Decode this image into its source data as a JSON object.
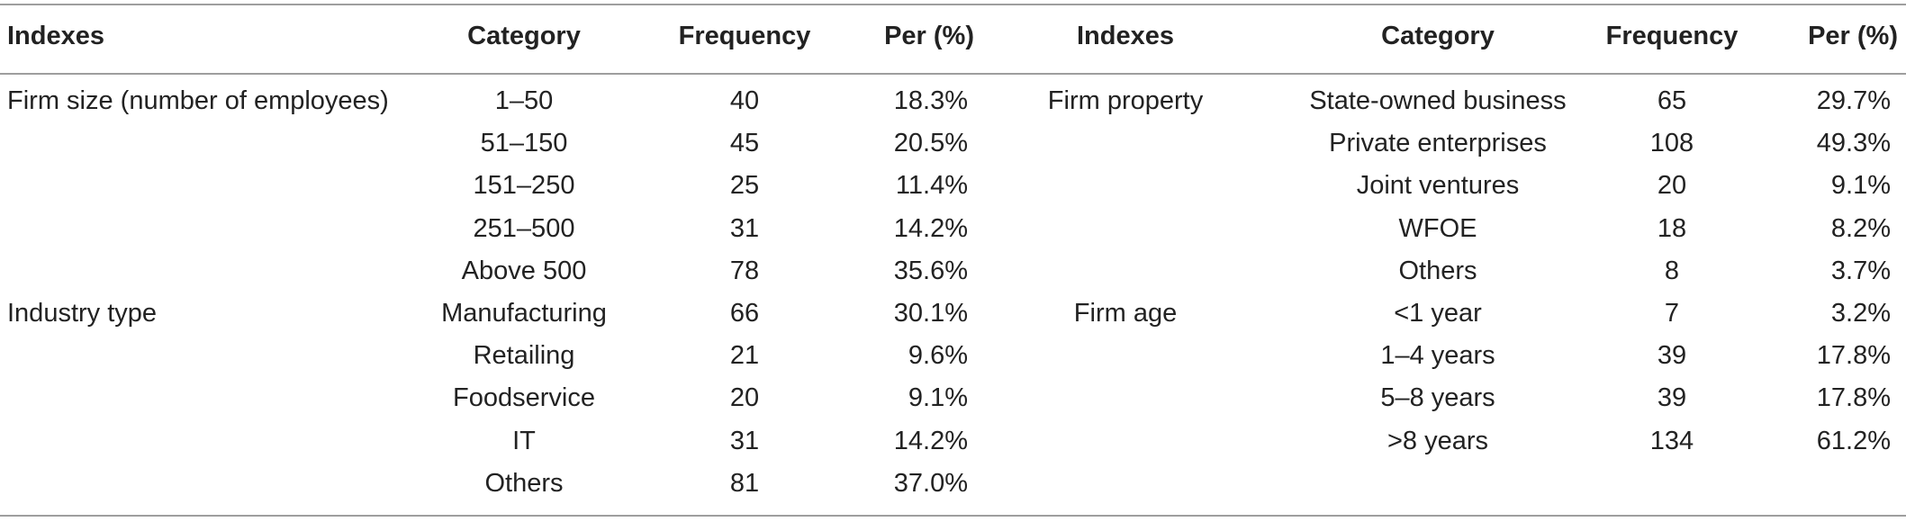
{
  "header": {
    "left": [
      "Indexes",
      "Category",
      "Frequency",
      "Per (%)"
    ],
    "right": [
      "Indexes",
      "Category",
      "Frequency",
      "Per (%)"
    ]
  },
  "rows": [
    {
      "l_index": "Firm size (number of employees)",
      "l_category": "1–50",
      "l_freq": "40",
      "l_per": "18.3%",
      "r_index": "Firm property",
      "r_category": "State-owned business",
      "r_freq": "65",
      "r_per": "29.7%"
    },
    {
      "l_index": "",
      "l_category": "51–150",
      "l_freq": "45",
      "l_per": "20.5%",
      "r_index": "",
      "r_category": "Private enterprises",
      "r_freq": "108",
      "r_per": "49.3%"
    },
    {
      "l_index": "",
      "l_category": "151–250",
      "l_freq": "25",
      "l_per": "11.4%",
      "r_index": "",
      "r_category": "Joint ventures",
      "r_freq": "20",
      "r_per": "9.1%"
    },
    {
      "l_index": "",
      "l_category": "251–500",
      "l_freq": "31",
      "l_per": "14.2%",
      "r_index": "",
      "r_category": "WFOE",
      "r_freq": "18",
      "r_per": "8.2%"
    },
    {
      "l_index": "",
      "l_category": "Above 500",
      "l_freq": "78",
      "l_per": "35.6%",
      "r_index": "",
      "r_category": "Others",
      "r_freq": "8",
      "r_per": "3.7%"
    },
    {
      "l_index": "Industry type",
      "l_category": "Manufacturing",
      "l_freq": "66",
      "l_per": "30.1%",
      "r_index": "Firm age",
      "r_category": "<1 year",
      "r_freq": "7",
      "r_per": "3.2%"
    },
    {
      "l_index": "",
      "l_category": "Retailing",
      "l_freq": "21",
      "l_per": "9.6%",
      "r_index": "",
      "r_category": "1–4 years",
      "r_freq": "39",
      "r_per": "17.8%"
    },
    {
      "l_index": "",
      "l_category": "Foodservice",
      "l_freq": "20",
      "l_per": "9.1%",
      "r_index": "",
      "r_category": "5–8 years",
      "r_freq": "39",
      "r_per": "17.8%"
    },
    {
      "l_index": "",
      "l_category": "IT",
      "l_freq": "31",
      "l_per": "14.2%",
      "r_index": "",
      "r_category": ">8 years",
      "r_freq": "134",
      "r_per": "61.2%"
    },
    {
      "l_index": "",
      "l_category": "Others",
      "l_freq": "81",
      "l_per": "37.0%",
      "r_index": "",
      "r_category": "",
      "r_freq": "",
      "r_per": ""
    }
  ]
}
